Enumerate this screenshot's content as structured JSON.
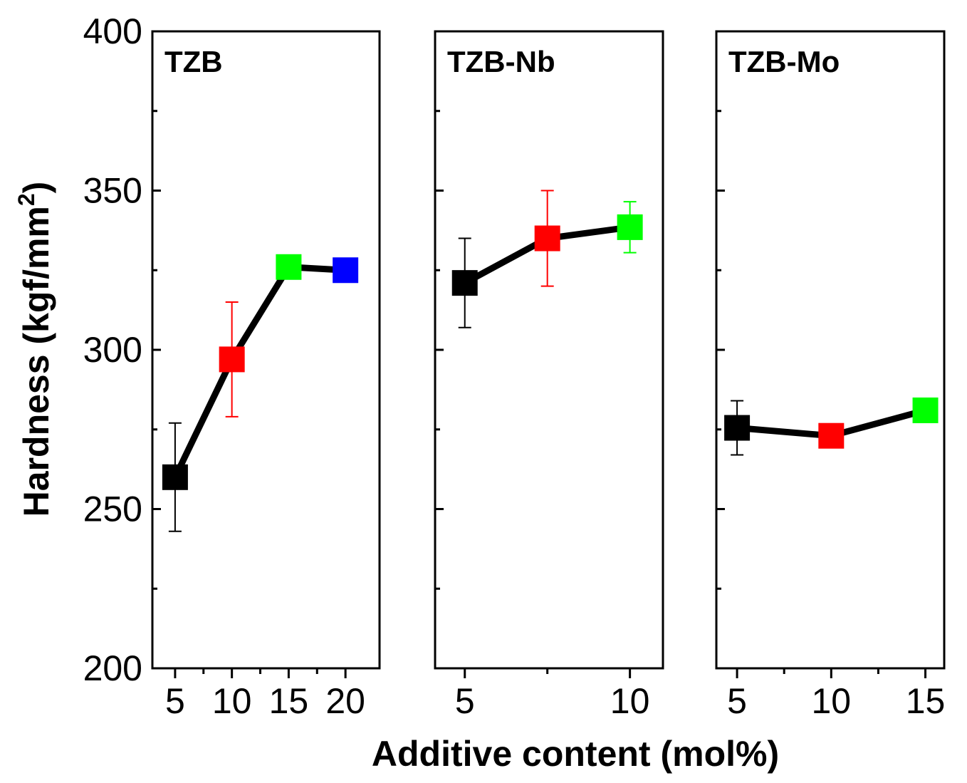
{
  "chart_data": {
    "type": "line",
    "ylabel": "Hardness (kgf/mm",
    "ylabel_sup": "2",
    "ylabel_close": ")",
    "xlabel": "Additive content (mol%)",
    "ylim": [
      200,
      400
    ],
    "yticks": [
      200,
      250,
      300,
      350,
      400
    ],
    "panels": [
      {
        "title": "TZB",
        "xlim": [
          3,
          23
        ],
        "xticks": [
          5,
          10,
          15,
          20
        ],
        "xticklabels": [
          "5",
          "10",
          "15",
          "20"
        ],
        "points": [
          {
            "x": 5,
            "y": 260,
            "err": 17,
            "color": "#000000"
          },
          {
            "x": 10,
            "y": 297,
            "err": 18,
            "color": "#ff0000"
          },
          {
            "x": 15,
            "y": 326,
            "err": 0,
            "color": "#00ff00"
          },
          {
            "x": 20,
            "y": 325,
            "err": 0,
            "color": "#0000ff"
          }
        ]
      },
      {
        "title": "TZB-Nb",
        "xlim": [
          4.1,
          11.0
        ],
        "xticks": [
          5,
          10
        ],
        "xticklabels": [
          "5",
          "10"
        ],
        "points": [
          {
            "x": 5,
            "y": 321,
            "err": 14,
            "color": "#000000"
          },
          {
            "x": 7.5,
            "y": 335,
            "err": 15,
            "color": "#ff0000"
          },
          {
            "x": 10,
            "y": 338.5,
            "err": 8,
            "color": "#00ff00"
          }
        ]
      },
      {
        "title": "TZB-Mo",
        "xlim": [
          3.9,
          16.0
        ],
        "xticks": [
          5,
          10,
          15
        ],
        "xticklabels": [
          "5",
          "10",
          "15"
        ],
        "points": [
          {
            "x": 5,
            "y": 275.5,
            "err": 8.5,
            "color": "#000000"
          },
          {
            "x": 10,
            "y": 273,
            "err": 0,
            "color": "#ff0000"
          },
          {
            "x": 15,
            "y": 281,
            "err": 0,
            "color": "#00ff00"
          }
        ]
      }
    ]
  }
}
